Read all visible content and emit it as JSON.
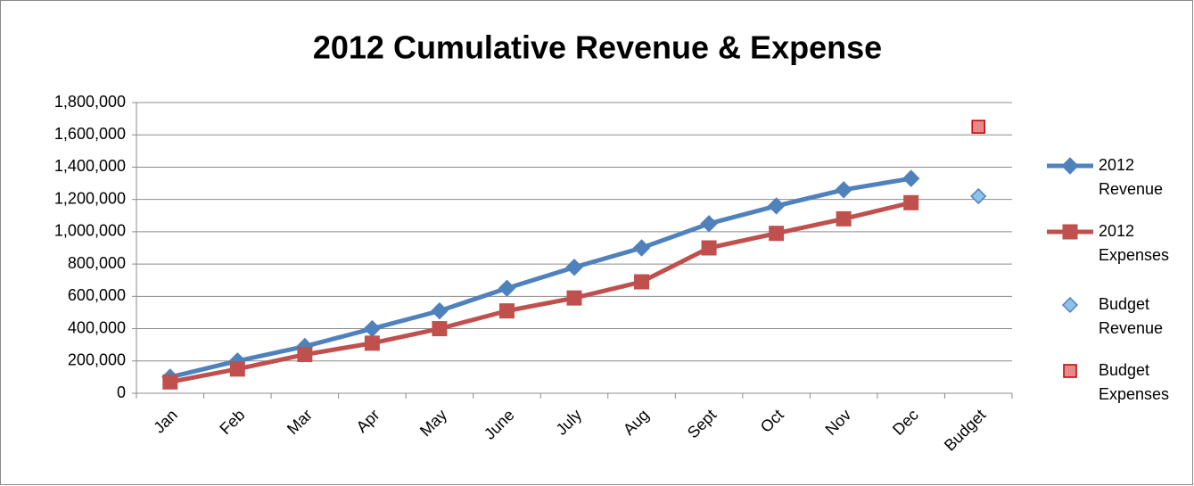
{
  "chart_data": {
    "type": "line",
    "title": "2012 Cumulative Revenue & Expense",
    "categories": [
      "Jan",
      "Feb",
      "Mar",
      "Apr",
      "May",
      "June",
      "July",
      "Aug",
      "Sept",
      "Oct",
      "Nov",
      "Dec",
      "Budget"
    ],
    "series": [
      {
        "name": "2012 Revenue",
        "color": "#4f81bd",
        "marker": "diamond",
        "line": true,
        "values": [
          100000,
          200000,
          290000,
          400000,
          510000,
          650000,
          780000,
          900000,
          1050000,
          1160000,
          1260000,
          1330000,
          null
        ]
      },
      {
        "name": "2012 Expenses",
        "color": "#c0504d",
        "marker": "square",
        "line": true,
        "values": [
          70000,
          150000,
          240000,
          310000,
          400000,
          510000,
          590000,
          690000,
          900000,
          990000,
          1080000,
          1180000,
          null
        ]
      },
      {
        "name": "Budget Revenue",
        "color": "#8fc1ea",
        "marker": "diamond",
        "line": false,
        "values": [
          null,
          null,
          null,
          null,
          null,
          null,
          null,
          null,
          null,
          null,
          null,
          null,
          1220000
        ]
      },
      {
        "name": "Budget Expenses",
        "color": "#e8888a",
        "marker": "square",
        "line": false,
        "values": [
          null,
          null,
          null,
          null,
          null,
          null,
          null,
          null,
          null,
          null,
          null,
          null,
          1650000
        ]
      }
    ],
    "ylim": [
      0,
      1800000
    ],
    "yticks": [
      0,
      {
        "value": 200000,
        "label": "200,000"
      },
      {
        "value": 400000,
        "label": "400,000"
      },
      {
        "value": 600000,
        "label": "600,000"
      },
      {
        "value": 800000,
        "label": "800,000"
      },
      {
        "value": 1000000,
        "label": "1,000,000"
      },
      {
        "value": 1200000,
        "label": "1,200,000"
      },
      {
        "value": 1400000,
        "label": "1,400,000"
      },
      {
        "value": 1600000,
        "label": "1,600,000"
      },
      {
        "value": 1800000,
        "label": "1,800,000"
      }
    ],
    "grid": true,
    "legend": "right"
  }
}
